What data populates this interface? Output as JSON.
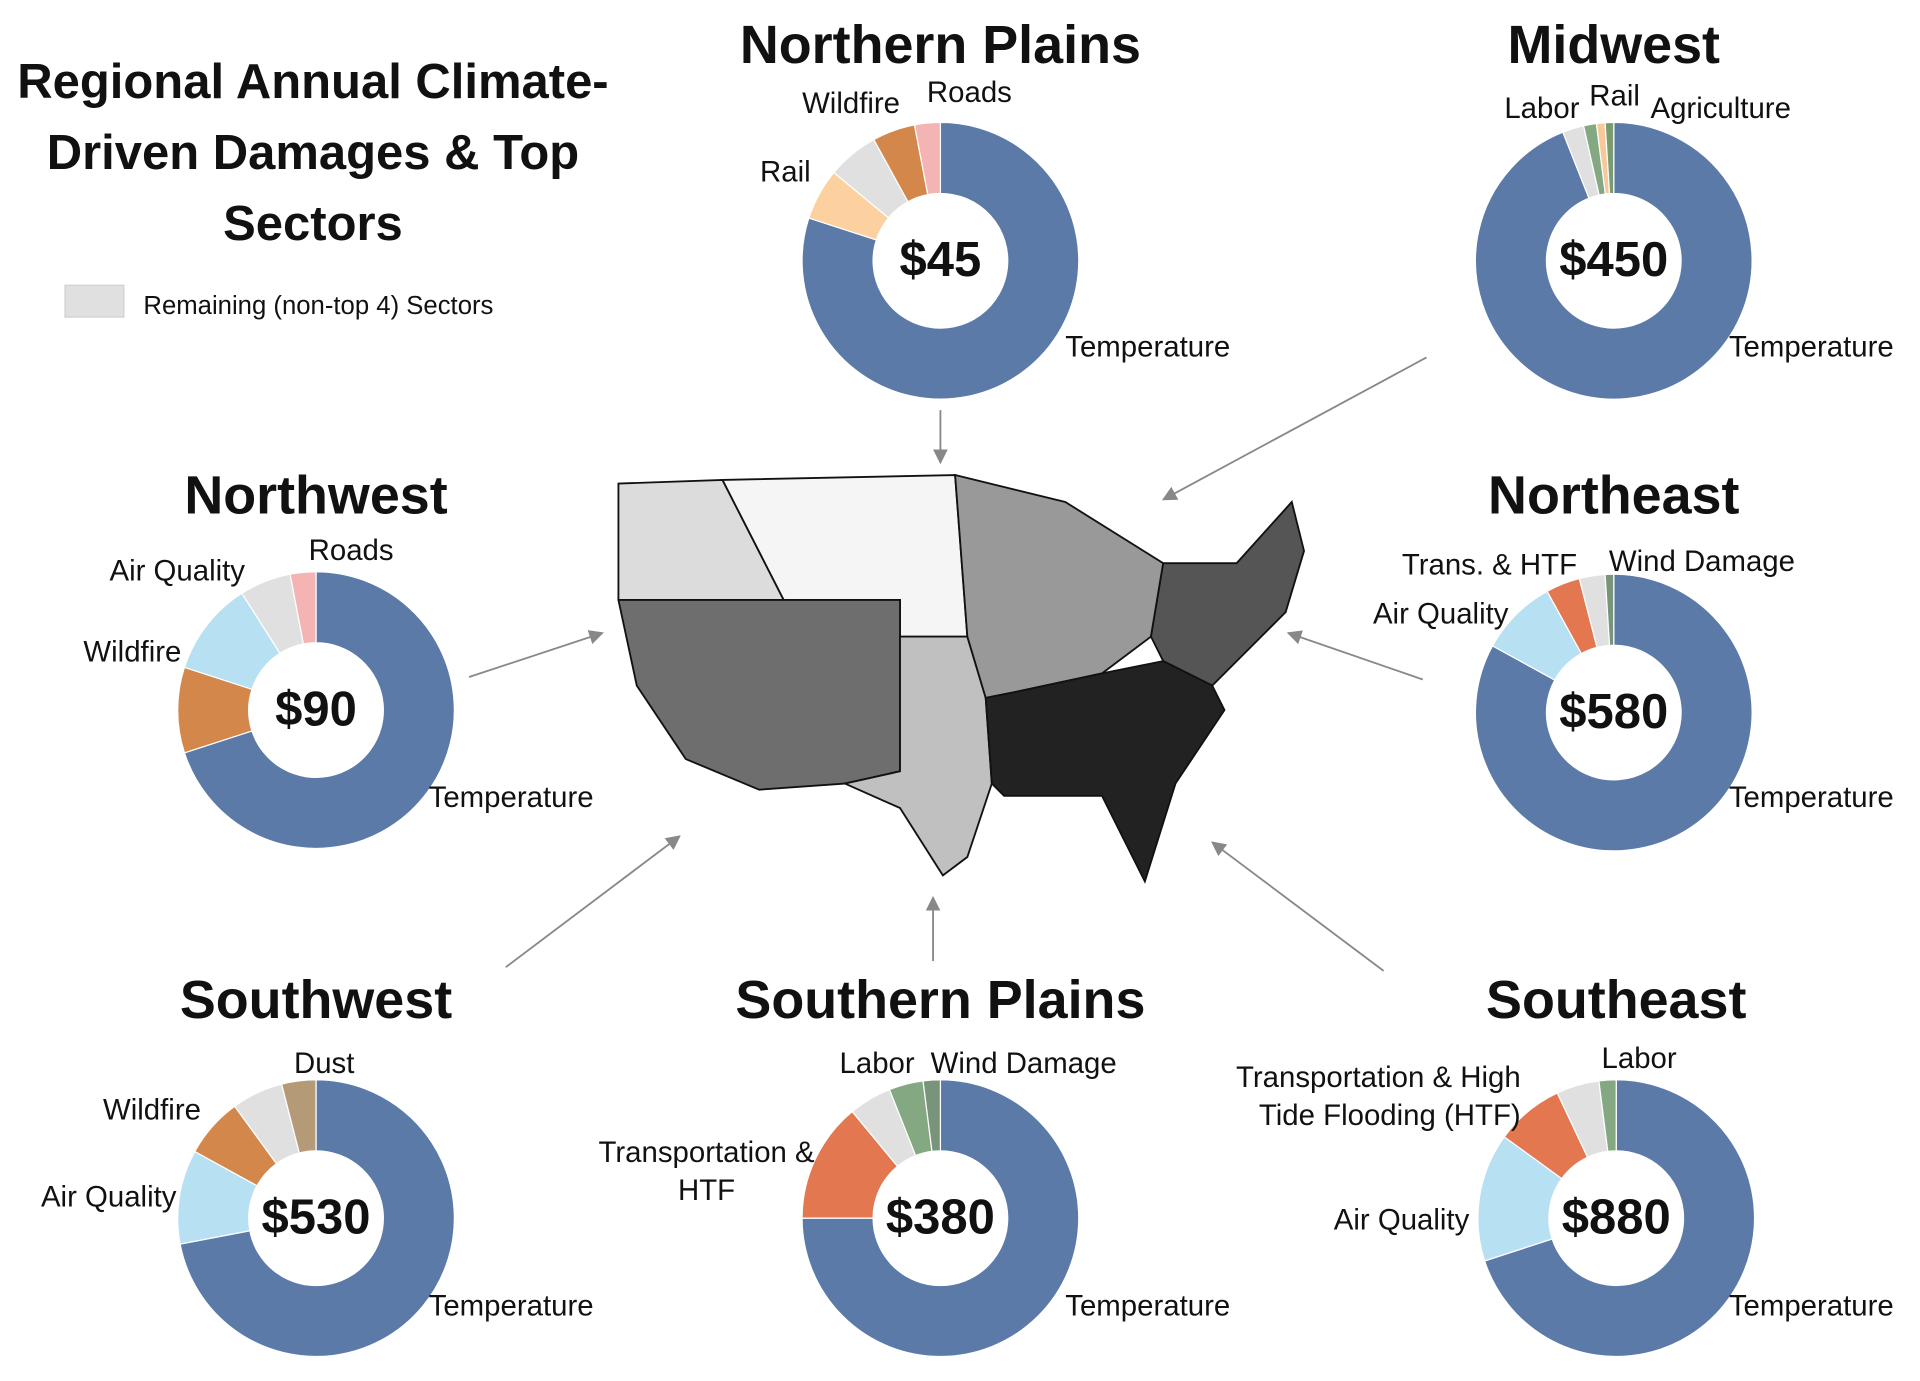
{
  "title": "Regional Annual Climate-Driven Damages & Top Sectors",
  "legend": {
    "label": "Remaining (non-top 4) Sectors",
    "color": "#e0e0e0"
  },
  "chart_data": [
    {
      "type": "donut",
      "title": "Northern Plains",
      "center_label": "$45",
      "categories": [
        "Temperature",
        "Rail",
        null,
        "Wildfire",
        "Roads"
      ],
      "values": [
        80,
        6,
        6,
        5,
        3
      ],
      "colors": [
        "#5b7aa8",
        "#fdd09f",
        "#e0e0e0",
        "#d4874a",
        "#f4b4b4"
      ]
    },
    {
      "type": "donut",
      "title": "Midwest",
      "center_label": "$450",
      "categories": [
        "Temperature",
        null,
        "Labor",
        "Rail",
        "Agriculture"
      ],
      "values": [
        94,
        2.5,
        1.5,
        1,
        1
      ],
      "colors": [
        "#5b7aa8",
        "#e0e0e0",
        "#84a982",
        "#f7c99a",
        "#7a9b70"
      ]
    },
    {
      "type": "donut",
      "title": "Northwest",
      "center_label": "$90",
      "categories": [
        "Temperature",
        "Wildfire",
        "Air Quality",
        null,
        "Roads"
      ],
      "values": [
        70,
        10,
        11,
        6,
        3
      ],
      "colors": [
        "#5b7aa8",
        "#d4874a",
        "#b7e0f2",
        "#e0e0e0",
        "#f4b4b4"
      ]
    },
    {
      "type": "donut",
      "title": "Northeast",
      "center_label": "$580",
      "categories": [
        "Temperature",
        "Air Quality",
        "Trans. & HTF",
        null,
        "Wind Damage"
      ],
      "values": [
        83,
        9,
        4,
        3,
        1
      ],
      "colors": [
        "#5b7aa8",
        "#b7e0f2",
        "#e3774f",
        "#e0e0e0",
        "#78947a"
      ]
    },
    {
      "type": "donut",
      "title": "Southwest",
      "center_label": "$530",
      "categories": [
        "Temperature",
        "Air Quality",
        "Wildfire",
        null,
        "Dust"
      ],
      "values": [
        72,
        11,
        7,
        6,
        4
      ],
      "colors": [
        "#5b7aa8",
        "#b7e0f2",
        "#d4874a",
        "#e0e0e0",
        "#b59a78"
      ]
    },
    {
      "type": "donut",
      "title": "Southern Plains",
      "center_label": "$380",
      "categories": [
        "Temperature",
        "Transportation & HTF",
        null,
        "Labor",
        "Wind Damage"
      ],
      "values": [
        75,
        14,
        5,
        4,
        2
      ],
      "colors": [
        "#5b7aa8",
        "#e3774f",
        "#e0e0e0",
        "#84a982",
        "#78947a"
      ]
    },
    {
      "type": "donut",
      "title": "Southeast",
      "center_label": "$880",
      "categories": [
        "Temperature",
        "Air Quality",
        "Transportation & High Tide Flooding (HTF)",
        null,
        "Labor"
      ],
      "values": [
        70,
        15,
        8,
        5,
        2
      ],
      "colors": [
        "#5b7aa8",
        "#b7e0f2",
        "#e3774f",
        "#e0e0e0",
        "#84a982"
      ]
    }
  ]
}
